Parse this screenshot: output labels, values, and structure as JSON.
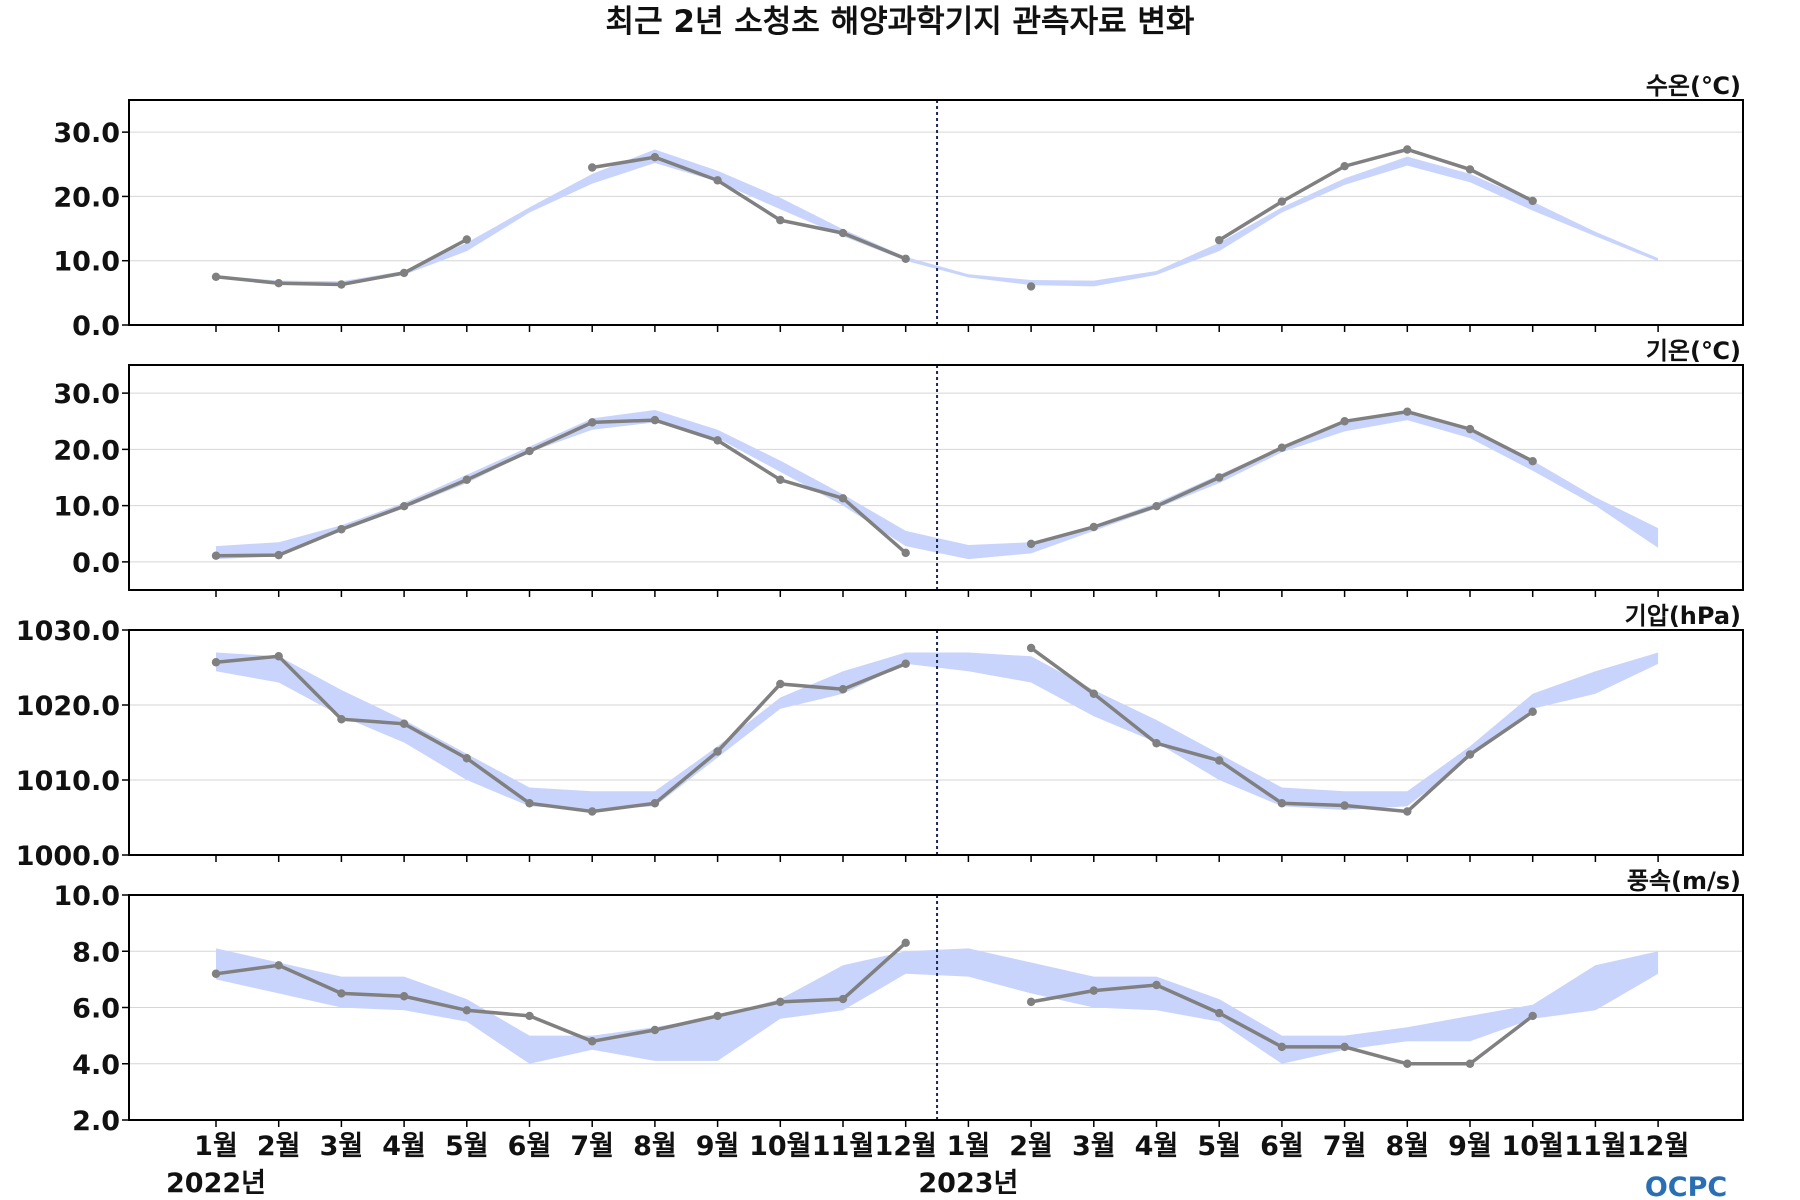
{
  "chart_data": {
    "type": "line",
    "title": "최근 2년 소청초 해양과학기지 관측자료 변화",
    "x_labels": [
      "1월",
      "2월",
      "3월",
      "4월",
      "5월",
      "6월",
      "7월",
      "8월",
      "9월",
      "10월",
      "11월",
      "12월",
      "1월",
      "2월",
      "3월",
      "4월",
      "5월",
      "6월",
      "7월",
      "8월",
      "9월",
      "10월",
      "11월",
      "12월"
    ],
    "years": [
      {
        "label": "2022년",
        "start_index": 0
      },
      {
        "label": "2023년",
        "start_index": 12
      }
    ],
    "divider_after_index": 11,
    "logo_text": "OCPC",
    "colors": {
      "band": "#c8d4fb",
      "line": "#808080",
      "divider": "#1b2a55",
      "grid": "#d6d6d6"
    },
    "panels": [
      {
        "label": "수온(℃)",
        "ylim": [
          0,
          35
        ],
        "yticks": [
          0,
          10,
          20,
          30
        ],
        "tick_labels": [
          "0.0",
          "10.0",
          "20.0",
          "30.0"
        ],
        "series": [
          {
            "values": [
              7.5,
              6.5,
              6.3,
              8.1,
              13.3,
              null,
              24.5,
              26.1,
              22.5,
              16.3,
              14.3,
              10.3,
              null,
              6.0,
              null,
              null,
              13.2,
              19.2,
              24.7,
              27.3,
              24.2,
              19.3,
              null,
              null
            ]
          }
        ],
        "band": {
          "lower": [
            7.3,
            6.3,
            6.1,
            7.8,
            11.5,
            17.5,
            22.0,
            25.2,
            22.3,
            18.0,
            13.8,
            10.0,
            7.4,
            6.2,
            6.0,
            7.8,
            11.5,
            17.5,
            21.8,
            24.8,
            22.2,
            17.8,
            13.8,
            9.9
          ],
          "upper": [
            7.7,
            6.9,
            6.8,
            8.4,
            12.8,
            18.3,
            23.5,
            27.3,
            24.0,
            19.8,
            14.9,
            10.6,
            7.9,
            7.0,
            6.9,
            8.4,
            12.8,
            18.3,
            22.8,
            26.2,
            23.5,
            19.2,
            14.5,
            10.4
          ]
        }
      },
      {
        "label": "기온(℃)",
        "ylim": [
          -5,
          35
        ],
        "yticks": [
          0,
          10,
          20,
          30
        ],
        "tick_labels": [
          "0.0",
          "10.0",
          "20.0",
          "30.0"
        ],
        "series": [
          {
            "values": [
              1.1,
              1.2,
              5.8,
              9.9,
              14.6,
              19.7,
              24.8,
              25.2,
              21.6,
              14.6,
              11.3,
              1.6,
              null,
              3.2,
              6.2,
              9.9,
              15.0,
              20.3,
              25.0,
              26.7,
              23.6,
              17.9,
              null,
              null
            ]
          }
        ],
        "band": {
          "lower": [
            0.5,
            1.0,
            5.5,
            9.5,
            14.0,
            19.5,
            23.5,
            24.8,
            22.0,
            16.0,
            10.0,
            2.8,
            0.5,
            1.5,
            5.5,
            9.5,
            14.0,
            19.5,
            23.2,
            25.2,
            22.0,
            16.2,
            10.0,
            2.5
          ],
          "upper": [
            2.8,
            3.5,
            6.5,
            10.5,
            15.5,
            20.5,
            25.5,
            27.0,
            23.5,
            18.0,
            12.0,
            5.5,
            3.0,
            3.5,
            6.5,
            10.5,
            15.5,
            20.5,
            25.0,
            26.8,
            23.5,
            18.0,
            11.5,
            6.0
          ]
        }
      },
      {
        "label": "기압(hPa)",
        "ylim": [
          1000,
          1030
        ],
        "yticks": [
          1000,
          1010,
          1020,
          1030
        ],
        "tick_labels": [
          "1000.0",
          "1010.0",
          "1020.0",
          "1030.0"
        ],
        "series": [
          {
            "values": [
              1025.7,
              1026.5,
              1018.1,
              1017.5,
              1012.9,
              1006.9,
              1005.8,
              1006.9,
              1013.8,
              1022.8,
              1022.1,
              1025.5,
              null,
              1027.6,
              1021.5,
              1014.9,
              1012.6,
              1006.9,
              1006.6,
              1005.8,
              1013.4,
              1019.1,
              null,
              null
            ]
          }
        ],
        "band": {
          "lower": [
            1024.5,
            1023.0,
            1018.5,
            1015.0,
            1010.0,
            1006.5,
            1006.0,
            1006.5,
            1013.0,
            1019.5,
            1021.5,
            1025.5,
            1024.5,
            1023.0,
            1018.5,
            1015.0,
            1010.0,
            1006.5,
            1006.0,
            1006.5,
            1013.0,
            1019.5,
            1021.5,
            1025.5
          ],
          "upper": [
            1027.0,
            1026.5,
            1022.0,
            1018.0,
            1013.5,
            1009.0,
            1008.5,
            1008.5,
            1014.5,
            1021.0,
            1024.5,
            1027.0,
            1027.0,
            1026.5,
            1022.0,
            1018.0,
            1013.5,
            1009.0,
            1008.5,
            1008.5,
            1014.5,
            1021.5,
            1024.5,
            1027.0
          ]
        }
      },
      {
        "label": "풍속(m/s)",
        "ylim": [
          2,
          10
        ],
        "yticks": [
          2,
          4,
          6,
          8,
          10
        ],
        "tick_labels": [
          "2.0",
          "4.0",
          "6.0",
          "8.0",
          "10.0"
        ],
        "series": [
          {
            "values": [
              7.2,
              7.5,
              6.5,
              6.4,
              5.9,
              5.7,
              4.8,
              5.2,
              5.7,
              6.2,
              6.3,
              8.3,
              null,
              6.2,
              6.6,
              6.8,
              5.8,
              4.6,
              4.6,
              4.0,
              4.0,
              5.7,
              null,
              null
            ]
          }
        ],
        "band": {
          "lower": [
            7.0,
            6.5,
            6.0,
            5.9,
            5.5,
            4.0,
            4.5,
            4.1,
            4.1,
            5.6,
            5.9,
            7.2,
            7.1,
            6.5,
            6.0,
            5.9,
            5.5,
            4.0,
            4.5,
            4.8,
            4.8,
            5.6,
            5.9,
            7.2
          ],
          "upper": [
            8.1,
            7.6,
            7.1,
            7.1,
            6.3,
            5.0,
            5.0,
            5.3,
            5.7,
            6.3,
            7.5,
            8.0,
            8.1,
            7.6,
            7.1,
            7.1,
            6.3,
            5.0,
            5.0,
            5.3,
            5.7,
            6.1,
            7.5,
            8.0
          ]
        }
      }
    ]
  }
}
